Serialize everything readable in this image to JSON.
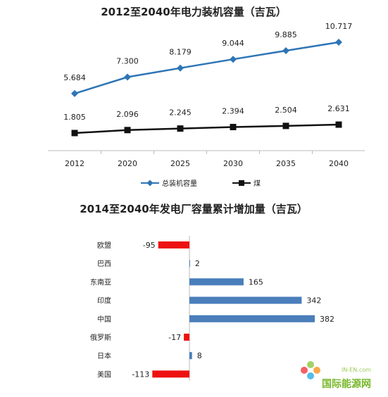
{
  "chart_data": [
    {
      "type": "line",
      "title": "2012至2040年电力装机容量（吉瓦）",
      "categories": [
        "2012",
        "2020",
        "2025",
        "2030",
        "2035",
        "2040"
      ],
      "series": [
        {
          "name": "总装机容量",
          "values": [
            5.684,
            7.3,
            8.179,
            9.044,
            9.885,
            10.717
          ],
          "labels": [
            "5.684",
            "7.300",
            "8.179",
            "9.044",
            "9.885",
            "10.717"
          ],
          "color": "#2e75b6"
        },
        {
          "name": "煤",
          "values": [
            1.805,
            2.096,
            2.245,
            2.394,
            2.504,
            2.631
          ],
          "labels": [
            "1.805",
            "2.096",
            "2.245",
            "2.394",
            "2.504",
            "2.631"
          ],
          "color": "#111111"
        }
      ],
      "legend_position": "bottom",
      "grid": false
    },
    {
      "type": "bar",
      "orientation": "horizontal",
      "title": "2014至2040年发电厂容量累计增加量（吉瓦）",
      "categories": [
        "欧盟",
        "巴西",
        "东南亚",
        "印度",
        "中国",
        "俄罗斯",
        "日本",
        "美国"
      ],
      "values": [
        -95,
        2,
        165,
        342,
        382,
        -17,
        8,
        -113
      ],
      "labels": [
        "-95",
        "2",
        "165",
        "342",
        "382",
        "-17",
        "8",
        "-113"
      ],
      "xlim": [
        -113,
        382
      ],
      "colors": {
        "positive": "#4a7ebb",
        "negative": "#ee1111"
      },
      "grid": false
    }
  ],
  "watermark": {
    "url": "IN-EN.com",
    "name": "国际能源网"
  }
}
